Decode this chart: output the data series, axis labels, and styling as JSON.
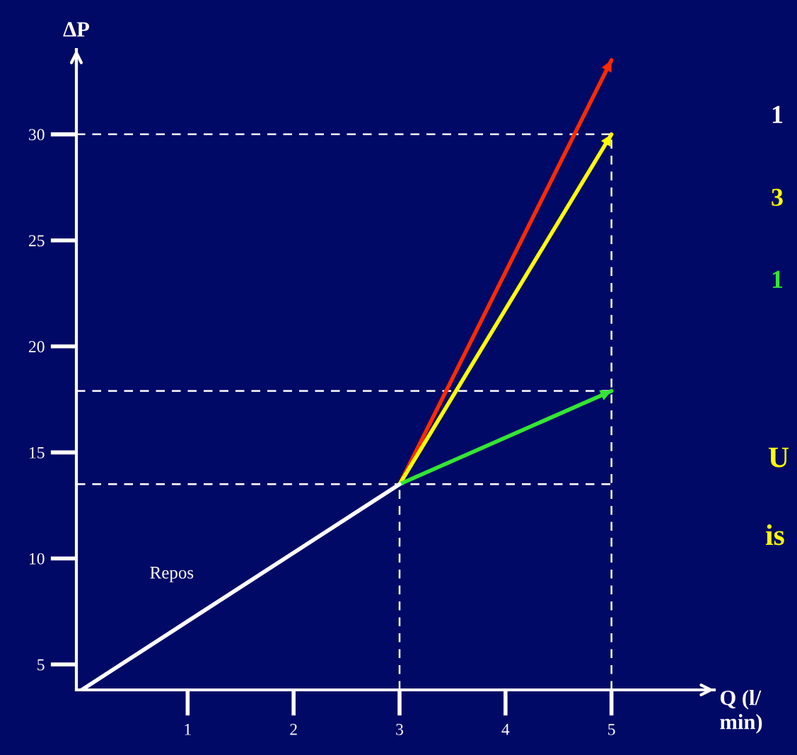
{
  "chart_data": {
    "type": "line",
    "xlabel": "Q (l/\nmin)",
    "ylabel": "ΔP",
    "xlim": [
      -0.05,
      5.97
    ],
    "ylim": [
      3.8,
      34.0
    ],
    "xticks": [
      1,
      2,
      3,
      4,
      5
    ],
    "yticks": [
      5,
      10,
      15,
      20,
      25,
      30
    ],
    "grid": false,
    "legend": false,
    "line_style": "solid",
    "marker": "none",
    "series": [
      {
        "name": "Repos",
        "color": "#ffffff",
        "x": [
          0,
          3
        ],
        "values": [
          3.8,
          13.5
        ]
      },
      {
        "color": "#ff2a00",
        "x": [
          3,
          5
        ],
        "values": [
          13.5,
          33.5
        ]
      },
      {
        "color": "#ffff00",
        "x": [
          3,
          5
        ],
        "values": [
          13.5,
          30
        ]
      },
      {
        "color": "#33e633",
        "x": [
          3,
          5
        ],
        "values": [
          13.5,
          17.9
        ]
      }
    ],
    "ref_lines": [
      {
        "axis": "y",
        "value": 30,
        "color": "#ffffff",
        "line_style": "dashed"
      },
      {
        "axis": "y",
        "value": 17.9,
        "color": "#ffffff",
        "line_style": "dashed"
      },
      {
        "axis": "y",
        "value": 13.5,
        "color": "#ffffff",
        "line_style": "dashed"
      },
      {
        "axis": "x",
        "value": 3,
        "color": "#ffffff",
        "line_style": "dashed"
      },
      {
        "axis": "x",
        "value": 5,
        "color": "#ffffff",
        "line_style": "dashed"
      }
    ],
    "annotations": [
      "1",
      "3",
      "1",
      "U",
      "is"
    ]
  }
}
